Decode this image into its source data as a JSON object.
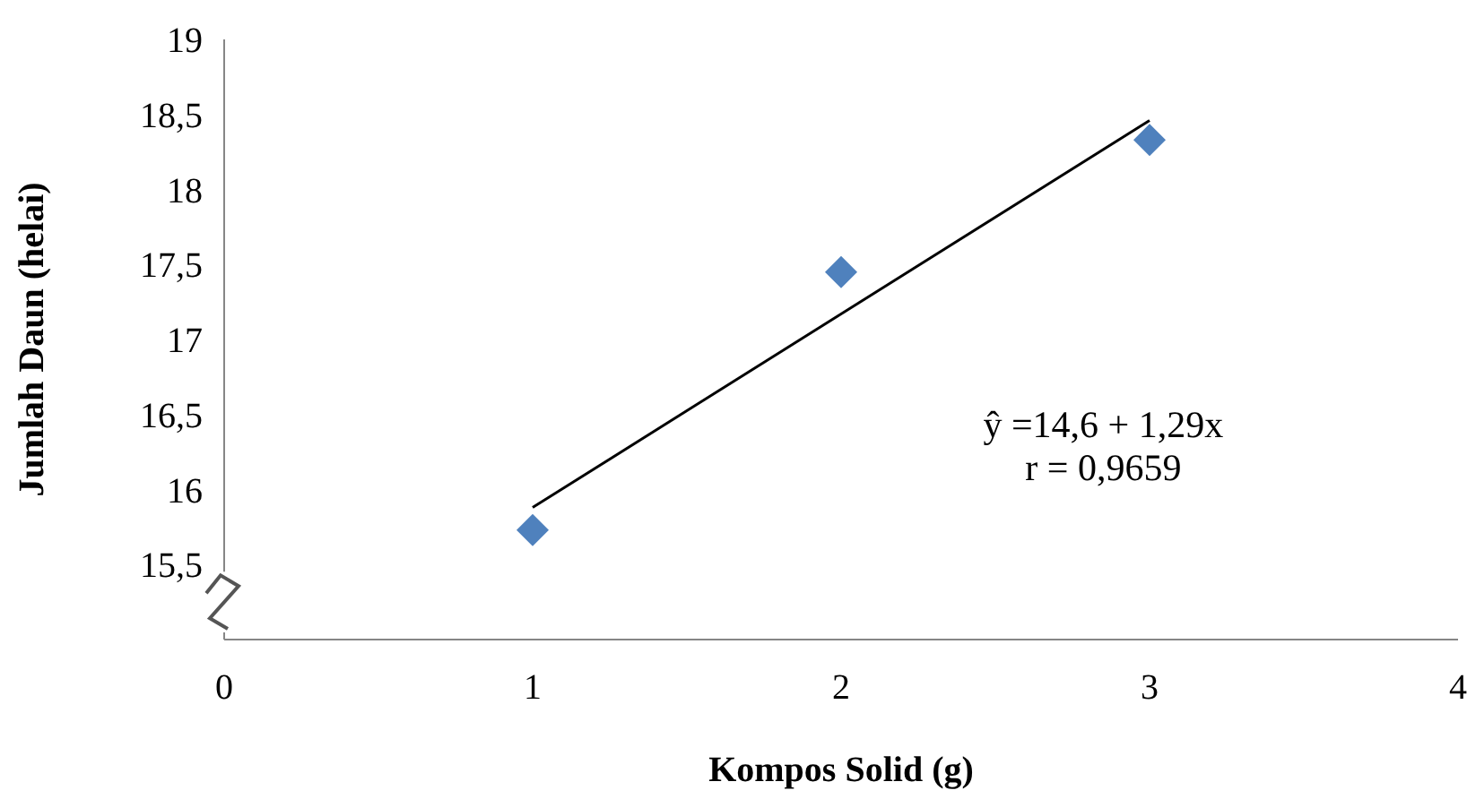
{
  "chart_data": {
    "type": "scatter",
    "xlabel": "Kompos Solid (g)",
    "ylabel": "Jumlah Daun (helai)",
    "xlim": [
      0,
      4
    ],
    "xticks": [
      0,
      1,
      2,
      3,
      4
    ],
    "ylim": [
      15,
      19
    ],
    "yticks": [
      {
        "value": 15.5,
        "label": "15,5"
      },
      16,
      {
        "value": 16.5,
        "label": "16,5"
      },
      17,
      {
        "value": 17.5,
        "label": "17,5"
      },
      18,
      {
        "value": 18.5,
        "label": "18,5"
      },
      19
    ],
    "marker": "diamond",
    "grid": false,
    "series": [
      {
        "color": "#4f81bd",
        "x": [
          1,
          2,
          3
        ],
        "values": [
          15.73,
          17.45,
          18.33
        ]
      },
      {
        "type": "line",
        "color": "#000000",
        "x": [
          1,
          3
        ],
        "values": [
          15.88,
          18.46
        ],
        "marker": "none"
      }
    ],
    "annotations": [
      "ŷ =14,6 +  1,29x",
      "r = 0,9659"
    ]
  }
}
